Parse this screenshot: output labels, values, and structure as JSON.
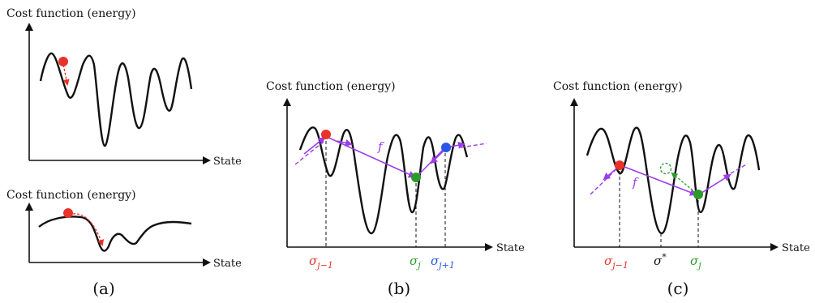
{
  "panels": [
    {
      "id": "a-top",
      "ylabel": "Cost function (energy)",
      "xlabel": "State"
    },
    {
      "id": "a-bottom",
      "ylabel": "Cost function (energy)",
      "xlabel": "State"
    },
    {
      "id": "b",
      "ylabel": "Cost function (energy)",
      "xlabel": "State",
      "arrow_label": "f",
      "markers": [
        {
          "label_base": "σ",
          "label_sub": "j−1",
          "color": "#e8322a"
        },
        {
          "label_base": "σ",
          "label_sub": "j",
          "color": "#2a9a2a"
        },
        {
          "label_base": "σ",
          "label_sub": "j+1",
          "color": "#2a55e8"
        }
      ]
    },
    {
      "id": "c",
      "ylabel": "Cost function (energy)",
      "xlabel": "State",
      "arrow_label": "f",
      "markers": [
        {
          "label_base": "σ",
          "label_sub": "j−1",
          "color": "#e8322a"
        },
        {
          "label_base": "σ",
          "label_sup": "*",
          "color": "#111111"
        },
        {
          "label_base": "σ",
          "label_sub": "j",
          "color": "#2a9a2a"
        }
      ]
    }
  ],
  "captions": {
    "a": "(a)",
    "b": "(b)",
    "c": "(c)"
  },
  "colors": {
    "red": "#e8322a",
    "green": "#2a9a2a",
    "blue": "#2a55e8",
    "purple": "#9b3de8",
    "curve": "#111111"
  }
}
